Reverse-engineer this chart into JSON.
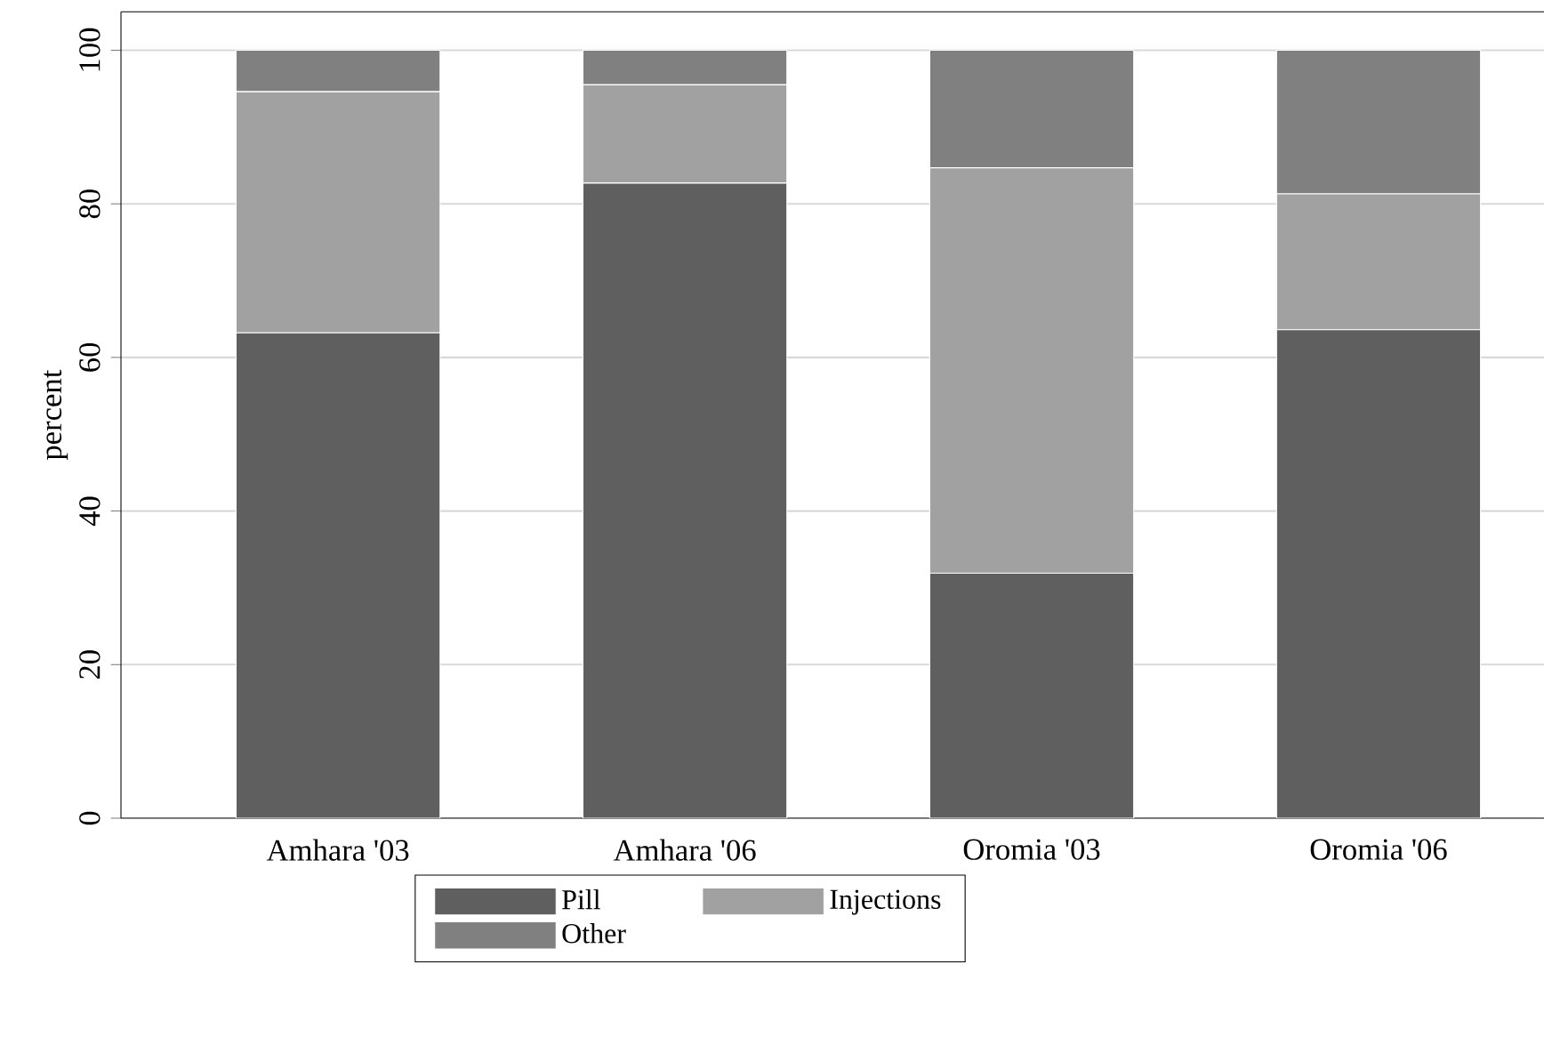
{
  "chart_data": {
    "type": "bar",
    "stacked": true,
    "ylabel": "percent",
    "categories": [
      "Amhara '03",
      "Amhara '06",
      "Oromia '03",
      "Oromia '06"
    ],
    "series": [
      {
        "name": "Pill",
        "color": "#5f5f5f",
        "values": [
          63.2,
          82.7,
          31.9,
          63.6
        ]
      },
      {
        "name": "Injections",
        "color": "#a1a1a1",
        "values": [
          31.4,
          12.8,
          52.8,
          17.7
        ]
      },
      {
        "name": "Other",
        "color": "#808080",
        "values": [
          5.4,
          4.5,
          15.3,
          18.7
        ]
      }
    ],
    "ylim": [
      0,
      105
    ],
    "yticks": [
      0,
      20,
      40,
      60,
      80,
      100
    ],
    "grid": "y",
    "legend": "bottom"
  }
}
